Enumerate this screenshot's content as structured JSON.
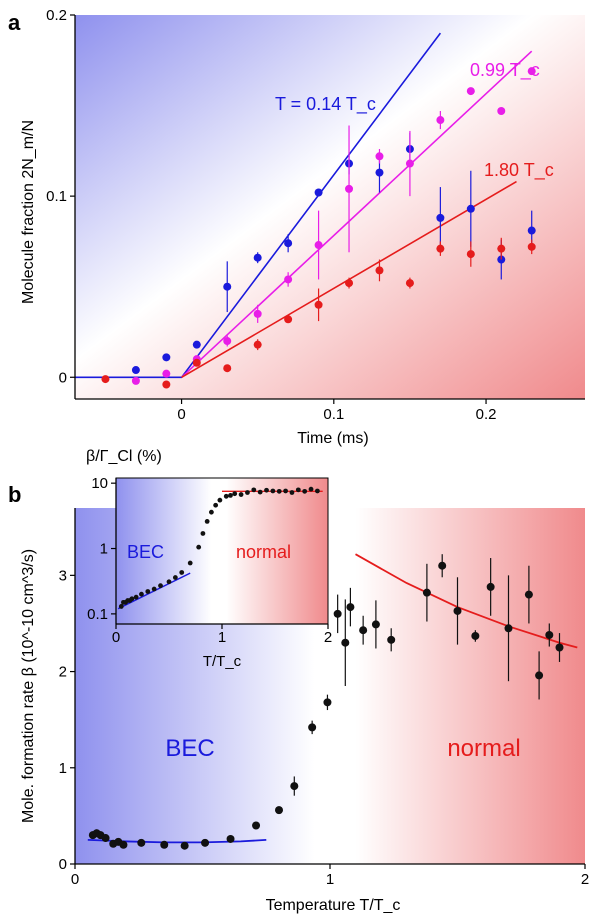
{
  "panel_a_label": "a",
  "panel_b_label": "b",
  "colors": {
    "blue": "#1a1adc",
    "magenta": "#e81ee8",
    "red": "#e51c1c",
    "black": "#111111",
    "bg_blue": "#8f91ee",
    "bg_red": "#f08a8c"
  },
  "chart_data": [
    {
      "id": "a",
      "type": "scatter",
      "xlabel": "Time (ms)",
      "ylabel": "Molecule fraction  2N_m/N",
      "xlim": [
        -0.07,
        0.265
      ],
      "ylim": [
        -0.012,
        0.2
      ],
      "xticks": [
        {
          "v": 0,
          "t": "0"
        },
        {
          "v": 0.1,
          "t": "0.1"
        },
        {
          "v": 0.2,
          "t": "0.2"
        }
      ],
      "yticks": [
        {
          "v": 0,
          "t": "0"
        },
        {
          "v": 0.1,
          "t": "0.1"
        },
        {
          "v": 0.2,
          "t": "0.2"
        }
      ],
      "series": [
        {
          "name": "T = 0.14 T_c",
          "color": "#1a1adc",
          "x": [
            -0.03,
            -0.01,
            0.01,
            0.03,
            0.05,
            0.07,
            0.09,
            0.11,
            0.13,
            0.15,
            0.17,
            0.19,
            0.21,
            0.23
          ],
          "y": [
            0.004,
            0.011,
            0.018,
            0.05,
            0.066,
            0.074,
            0.102,
            0.118,
            0.113,
            0.126,
            0.088,
            0.093,
            0.065,
            0.081
          ],
          "err": [
            0,
            0,
            0,
            0.014,
            0.003,
            0.005,
            0.002,
            0.006,
            0.011,
            0.009,
            0.017,
            0.021,
            0.011,
            0.011
          ],
          "fit": [
            [
              -0.07,
              0
            ],
            [
              0,
              0
            ],
            [
              0.17,
              0.19
            ]
          ]
        },
        {
          "name": "0.99 T_c",
          "color": "#e81ee8",
          "x": [
            -0.03,
            -0.01,
            0.01,
            0.03,
            0.05,
            0.07,
            0.09,
            0.11,
            0.13,
            0.15,
            0.17,
            0.19,
            0.21,
            0.23
          ],
          "y": [
            -0.002,
            0.002,
            0.01,
            0.02,
            0.035,
            0.054,
            0.073,
            0.104,
            0.122,
            0.118,
            0.142,
            0.158,
            0.147,
            0.169
          ],
          "err": [
            0,
            0,
            0,
            0.003,
            0.005,
            0.004,
            0.019,
            0.035,
            0.004,
            0.018,
            0.005,
            0,
            0,
            0
          ],
          "fit": [
            [
              0,
              0
            ],
            [
              0.23,
              0.18
            ]
          ]
        },
        {
          "name": "1.80 T_c",
          "color": "#e51c1c",
          "x": [
            -0.05,
            -0.01,
            0.01,
            0.03,
            0.05,
            0.07,
            0.09,
            0.11,
            0.13,
            0.15,
            0.17,
            0.19,
            0.21,
            0.23
          ],
          "y": [
            -0.001,
            -0.004,
            0.008,
            0.005,
            0.018,
            0.032,
            0.04,
            0.052,
            0.059,
            0.052,
            0.071,
            0.068,
            0.071,
            0.072
          ],
          "err": [
            0,
            0,
            0,
            0.002,
            0.003,
            0.002,
            0.009,
            0.003,
            0.006,
            0.003,
            0.004,
            0.007,
            0.006,
            0.004
          ],
          "fit": [
            [
              0,
              0
            ],
            [
              0.22,
              0.108
            ]
          ]
        }
      ],
      "labels": [
        {
          "text": "T = 0.14 T_c",
          "color": "#1a1adc"
        },
        {
          "text": "0.99 T_c",
          "color": "#e81ee8"
        },
        {
          "text": "1.80 T_c",
          "color": "#e51c1c"
        }
      ]
    },
    {
      "id": "b",
      "type": "scatter",
      "xlabel": "Temperature T/T_c",
      "ylabel": "Mole. formation rate  β  (10^-10 cm^3/s)",
      "xlim": [
        0,
        2
      ],
      "ylim": [
        0,
        3.7
      ],
      "xticks": [
        {
          "v": 0,
          "t": "0"
        },
        {
          "v": 1,
          "t": "1"
        },
        {
          "v": 2,
          "t": "2"
        }
      ],
      "yticks": [
        {
          "v": 0,
          "t": "0"
        },
        {
          "v": 1,
          "t": "1"
        },
        {
          "v": 2,
          "t": "2"
        },
        {
          "v": 3,
          "t": "3"
        }
      ],
      "region_labels": [
        "BEC",
        "normal"
      ],
      "series": [
        {
          "name": "data",
          "color": "#111111",
          "x": [
            0.07,
            0.085,
            0.1,
            0.12,
            0.15,
            0.17,
            0.19,
            0.26,
            0.35,
            0.43,
            0.51,
            0.61,
            0.71,
            0.8,
            0.86,
            0.93,
            0.99,
            1.03,
            1.06,
            1.08,
            1.13,
            1.18,
            1.24,
            1.38,
            1.44,
            1.5,
            1.57,
            1.63,
            1.7,
            1.78,
            1.82,
            1.86,
            1.9
          ],
          "y": [
            0.3,
            0.32,
            0.3,
            0.27,
            0.21,
            0.23,
            0.2,
            0.22,
            0.2,
            0.19,
            0.22,
            0.26,
            0.4,
            0.56,
            0.81,
            1.42,
            1.68,
            2.6,
            2.3,
            2.67,
            2.43,
            2.49,
            2.33,
            2.82,
            3.1,
            2.63,
            2.37,
            2.88,
            2.45,
            2.8,
            1.96,
            2.38,
            2.25
          ],
          "err": [
            0.04,
            0.04,
            0.04,
            0.04,
            0.03,
            0.03,
            0.03,
            0.03,
            0.03,
            0.03,
            0.03,
            0.03,
            0.03,
            0.04,
            0.1,
            0.07,
            0.08,
            0.2,
            0.45,
            0.2,
            0.15,
            0.25,
            0.12,
            0.3,
            0.12,
            0.35,
            0.06,
            0.3,
            0.55,
            0.3,
            0.25,
            0.12,
            0.15
          ]
        },
        {
          "name": "low-T fit",
          "color": "#1a1adc",
          "x": [
            0.05,
            0.2,
            0.35,
            0.5,
            0.65,
            0.75
          ],
          "y": [
            0.25,
            0.235,
            0.225,
            0.225,
            0.235,
            0.25
          ]
        },
        {
          "name": "high-T fit",
          "color": "#e51c1c",
          "x": [
            1.1,
            1.3,
            1.5,
            1.7,
            1.9,
            1.97
          ],
          "y": [
            3.22,
            2.92,
            2.67,
            2.47,
            2.3,
            2.25
          ]
        }
      ]
    },
    {
      "id": "b-inset",
      "type": "scatter",
      "xlabel": "T/T_c",
      "ylabel": "β/Γ_Cl (%)",
      "xlim": [
        0,
        2
      ],
      "ylim": [
        0.07,
        12
      ],
      "yscale": "log",
      "xticks": [
        {
          "v": 0,
          "t": "0"
        },
        {
          "v": 1,
          "t": "1"
        },
        {
          "v": 2,
          "t": "2"
        }
      ],
      "yticks": [
        {
          "v": 0.1,
          "t": "0.1"
        },
        {
          "v": 1,
          "t": "1"
        },
        {
          "v": 10,
          "t": "10"
        }
      ],
      "region_labels": [
        "BEC",
        "normal"
      ],
      "series": [
        {
          "name": "data",
          "color": "#111111",
          "x": [
            0.05,
            0.07,
            0.09,
            0.11,
            0.13,
            0.15,
            0.19,
            0.24,
            0.3,
            0.36,
            0.42,
            0.5,
            0.56,
            0.62,
            0.7,
            0.78,
            0.82,
            0.86,
            0.9,
            0.94,
            0.98,
            1.04,
            1.08,
            1.12,
            1.18,
            1.24,
            1.3,
            1.36,
            1.42,
            1.48,
            1.54,
            1.6,
            1.66,
            1.72,
            1.78,
            1.84,
            1.9
          ],
          "y": [
            0.13,
            0.15,
            0.15,
            0.16,
            0.16,
            0.17,
            0.18,
            0.2,
            0.22,
            0.24,
            0.27,
            0.31,
            0.36,
            0.43,
            0.6,
            1.05,
            1.7,
            2.6,
            3.6,
            4.6,
            5.5,
            6.3,
            6.5,
            6.9,
            6.7,
            7.2,
            7.9,
            7.3,
            7.8,
            7.6,
            7.5,
            7.6,
            7.2,
            7.9,
            7.5,
            8.1,
            7.6
          ]
        },
        {
          "name": "low-T fit",
          "color": "#1a1adc",
          "x": [
            0.02,
            0.7
          ],
          "y": [
            0.12,
            0.42
          ]
        },
        {
          "name": "high-T fit",
          "color": "#e51c1c",
          "x": [
            1.0,
            1.95
          ],
          "y": [
            7.5,
            7.5
          ]
        }
      ]
    }
  ]
}
